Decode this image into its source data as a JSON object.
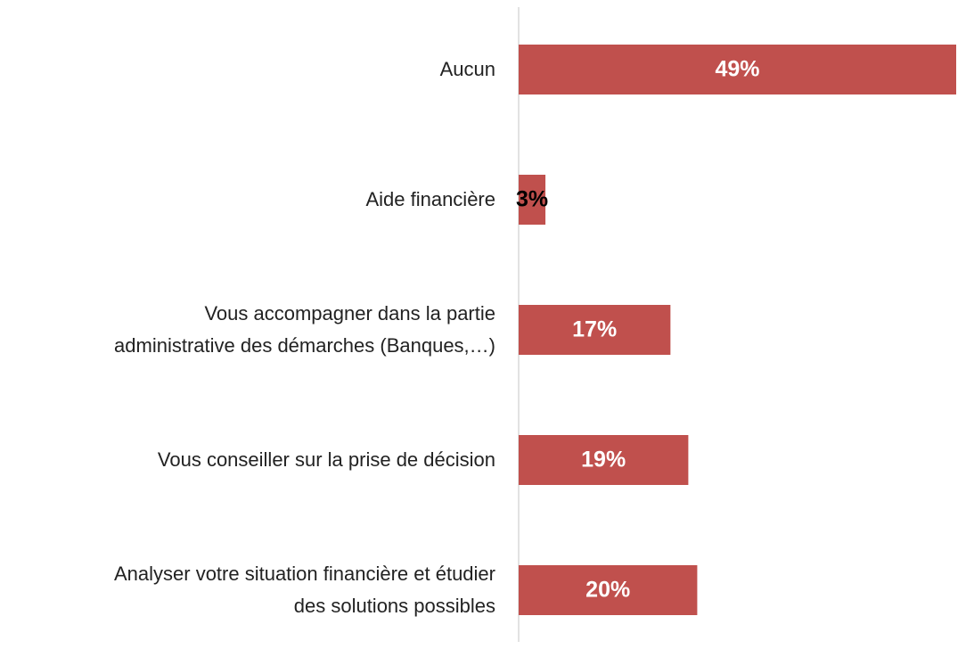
{
  "chart_data": {
    "type": "bar",
    "orientation": "horizontal",
    "categories": [
      "Aucun",
      "Aide financière",
      "Vous accompagner dans la partie\nadministrative des démarches (Banques,…)",
      "Vous conseiller sur la prise de décision",
      "Analyser votre situation financière et étudier\ndes solutions possibles"
    ],
    "values": [
      49,
      3,
      17,
      19,
      20
    ],
    "value_labels": [
      "49%",
      "3%",
      "17%",
      "19%",
      "20%"
    ],
    "color": "#c0504d"
  }
}
